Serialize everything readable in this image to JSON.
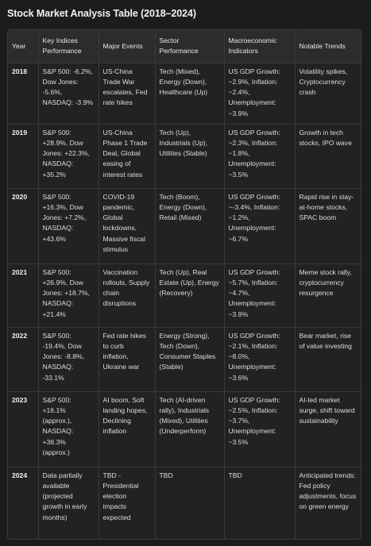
{
  "title": "Stock Market Analysis Table (2018–2024)",
  "headers": {
    "year": "Year",
    "indices": "Key Indices Performance",
    "events": "Major Events",
    "sector": "Sector Performance",
    "macro": "Macroeconomic Indicators",
    "trends": "Notable Trends"
  },
  "rows": [
    {
      "year": "2018",
      "indices": "S&P 500: -6.2%, Dow Jones: -5.6%, NASDAQ: -3.9%",
      "events": "US-China Trade War escalates, Fed rate hikes",
      "sector": "Tech (Mixed), Energy (Down), Healthcare (Up)",
      "macro": "US GDP Growth: ~2.9%, Inflation: ~2.4%, Unemployment: ~3.9%",
      "trends": "Volatility spikes, Cryptocurrency crash"
    },
    {
      "year": "2019",
      "indices": "S&P 500: +28.9%, Dow Jones: +22.3%, NASDAQ: +35.2%",
      "events": "US-China Phase 1 Trade Deal, Global easing of interest rates",
      "sector": "Tech (Up), Industrials (Up), Utilities (Stable)",
      "macro": "US GDP Growth: ~2.3%, Inflation: ~1.8%, Unemployment: ~3.5%",
      "trends": "Growth in tech stocks, IPO wave"
    },
    {
      "year": "2020",
      "indices": "S&P 500: +16.3%, Dow Jones: +7.2%, NASDAQ: +43.6%",
      "events": "COVID-19 pandemic, Global lockdowns, Massive fiscal stimulus",
      "sector": "Tech (Boom), Energy (Down), Retail (Mixed)",
      "macro": "US GDP Growth: ~-3.4%, Inflation: ~1.2%, Unemployment: ~6.7%",
      "trends": "Rapid rise in stay-at-home stocks, SPAC boom"
    },
    {
      "year": "2021",
      "indices": "S&P 500: +26.9%, Dow Jones: +18.7%, NASDAQ: +21.4%",
      "events": "Vaccination rollouts, Supply chain disruptions",
      "sector": "Tech (Up), Real Estate (Up), Energy (Recovery)",
      "macro": "US GDP Growth: ~5.7%, Inflation: ~4.7%, Unemployment: ~3.9%",
      "trends": "Meme stock rally, cryptocurrency resurgence"
    },
    {
      "year": "2022",
      "indices": "S&P 500: -19.4%, Dow Jones: -8.8%, NASDAQ: -33.1%",
      "events": "Fed rate hikes to curb inflation, Ukraine war",
      "sector": "Energy (Strong), Tech (Down), Consumer Staples (Stable)",
      "macro": "US GDP Growth: ~2.1%, Inflation: ~8.0%, Unemployment: ~3.6%",
      "trends": "Bear market, rise of value investing"
    },
    {
      "year": "2023",
      "indices": "S&P 500: +16.1% (approx.), NASDAQ: +38.3% (approx.)",
      "events": "AI boom, Soft landing hopes, Declining inflation",
      "sector": "Tech (AI-driven rally), Industrials (Mixed), Utilities (Underperform)",
      "macro": "US GDP Growth: ~2.5%, Inflation: ~3.7%, Unemployment: ~3.5%",
      "trends": "AI-led market surge, shift toward sustainability"
    },
    {
      "year": "2024",
      "indices": "Data partially available (projected growth in early months)",
      "events": "TBD - Presidential election impacts expected",
      "sector": "TBD",
      "macro": "TBD",
      "trends": "Anticipated trends: Fed policy adjustments, focus on green energy"
    }
  ]
}
